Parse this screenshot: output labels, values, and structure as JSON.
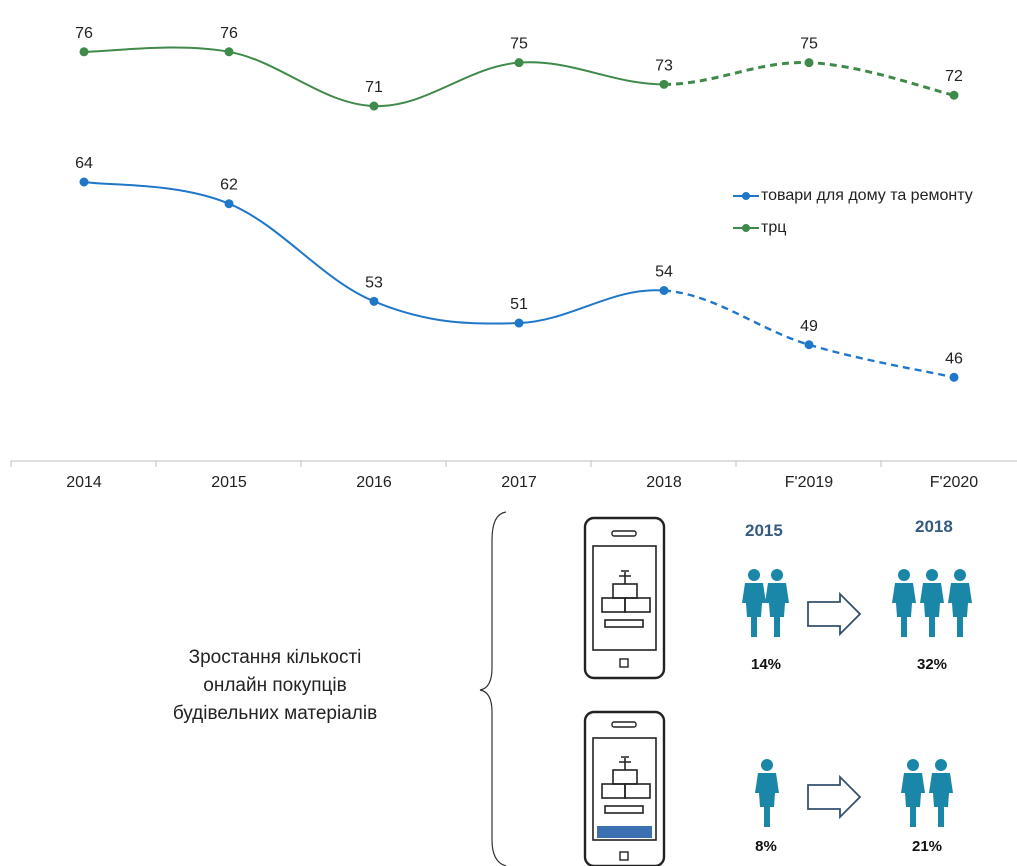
{
  "chart_data": {
    "type": "line",
    "categories": [
      "2014",
      "2015",
      "2016",
      "2017",
      "2018",
      "F'2019",
      "F'2020"
    ],
    "forecast_from_index": 4,
    "series": [
      {
        "name": "товари для дому та ремонту",
        "color": "#1f77c9",
        "values": [
          64,
          62,
          53,
          51,
          54,
          49,
          46
        ]
      },
      {
        "name": "трц",
        "color": "#3f8a4a",
        "values": [
          76,
          76,
          71,
          75,
          73,
          75,
          72
        ]
      }
    ],
    "legend_position": "right",
    "grid": false
  },
  "infographic": {
    "caption_lines": [
      "Зростання кількості",
      "онлайн покупців",
      "будівельних матеріалів"
    ],
    "year_from": "2015",
    "year_to": "2018",
    "row1": {
      "from": "14%",
      "to": "32%"
    },
    "row2": {
      "from": "8%",
      "to": "21%"
    },
    "icon_color": "#1a86a8"
  }
}
